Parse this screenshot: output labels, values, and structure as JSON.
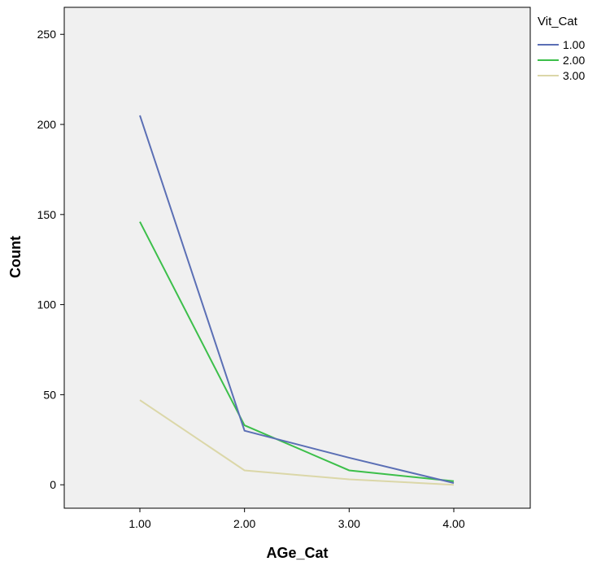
{
  "chart_data": {
    "type": "line",
    "xlabel": "AGe_Cat",
    "ylabel": "Count",
    "categories": [
      "1.00",
      "2.00",
      "3.00",
      "4.00"
    ],
    "ylim": [
      -13,
      265
    ],
    "yticks": [
      0,
      50,
      100,
      150,
      200,
      250
    ],
    "grid": false,
    "plot_background": "#f0f0f0",
    "legend_title": "Vit_Cat",
    "legend_position": "top-right, outside plot",
    "series": [
      {
        "name": "1.00",
        "color": "#5b6fb5",
        "values": [
          205,
          30,
          15,
          1
        ]
      },
      {
        "name": "2.00",
        "color": "#3cbf4a",
        "values": [
          146,
          33,
          8,
          2
        ]
      },
      {
        "name": "3.00",
        "color": "#dbd7a8",
        "values": [
          47,
          8,
          3,
          0
        ]
      }
    ]
  }
}
